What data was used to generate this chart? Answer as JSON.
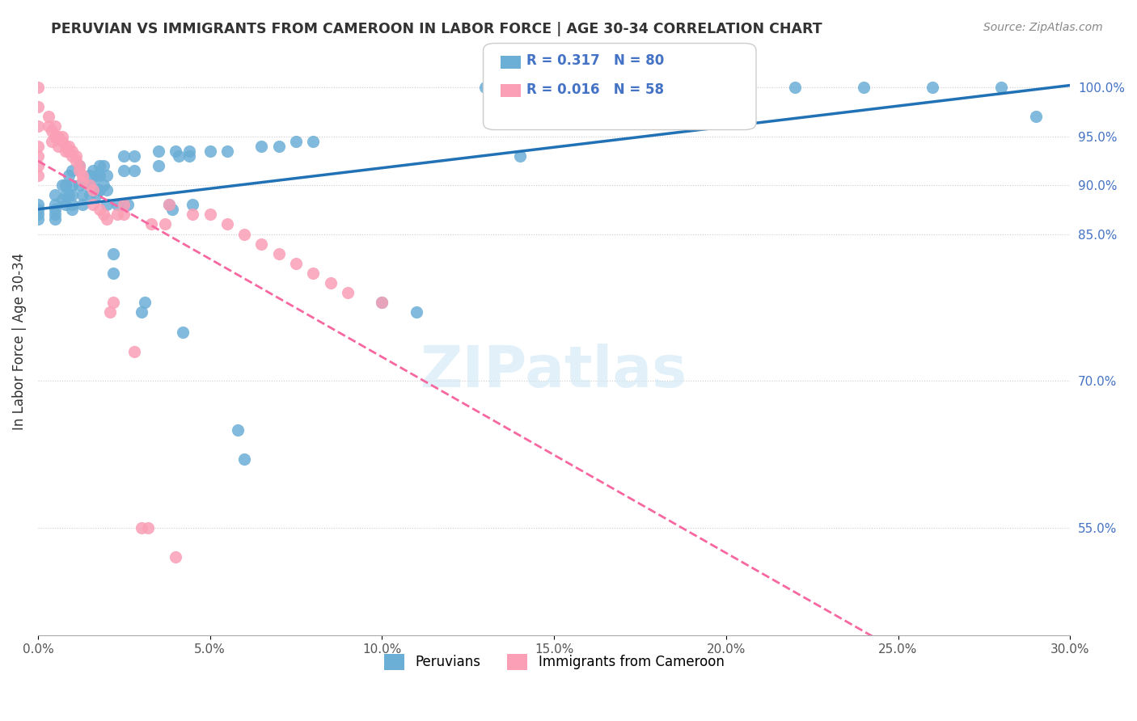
{
  "title": "PERUVIAN VS IMMIGRANTS FROM CAMEROON IN LABOR FORCE | AGE 30-34 CORRELATION CHART",
  "source": "Source: ZipAtlas.com",
  "xlabel_bottom": "",
  "ylabel": "In Labor Force | Age 30-34",
  "x_min": 0.0,
  "x_max": 0.3,
  "y_min": 0.44,
  "y_max": 1.04,
  "x_tick_labels": [
    "0.0%",
    "5.0%",
    "10.0%",
    "15.0%",
    "20.0%",
    "25.0%",
    "30.0%"
  ],
  "x_tick_vals": [
    0.0,
    0.05,
    0.1,
    0.15,
    0.2,
    0.25,
    0.3
  ],
  "y_tick_labels_left": [],
  "y_tick_labels_right": [
    "100.0%",
    "95.0%",
    "90.0%",
    "85.0%",
    "70.0%",
    "55.0%"
  ],
  "y_tick_vals_right": [
    1.0,
    0.95,
    0.9,
    0.85,
    0.7,
    0.55
  ],
  "legend_r1": "R = 0.317",
  "legend_n1": "N = 80",
  "legend_r2": "R = 0.016",
  "legend_n2": "N = 58",
  "blue_color": "#6baed6",
  "pink_color": "#fa9fb5",
  "blue_line_color": "#2171b5",
  "pink_line_color": "#f768a1",
  "watermark": "ZIPatlas",
  "blue_scatter_x": [
    0.0,
    0.0,
    0.0,
    0.0,
    0.005,
    0.005,
    0.005,
    0.005,
    0.005,
    0.007,
    0.007,
    0.008,
    0.008,
    0.008,
    0.009,
    0.009,
    0.01,
    0.01,
    0.01,
    0.01,
    0.01,
    0.012,
    0.012,
    0.013,
    0.013,
    0.015,
    0.015,
    0.015,
    0.016,
    0.016,
    0.017,
    0.017,
    0.018,
    0.018,
    0.018,
    0.019,
    0.019,
    0.02,
    0.02,
    0.02,
    0.022,
    0.022,
    0.023,
    0.025,
    0.025,
    0.026,
    0.028,
    0.028,
    0.03,
    0.031,
    0.035,
    0.035,
    0.038,
    0.039,
    0.04,
    0.041,
    0.042,
    0.044,
    0.044,
    0.045,
    0.05,
    0.055,
    0.058,
    0.06,
    0.065,
    0.07,
    0.075,
    0.08,
    0.1,
    0.11,
    0.13,
    0.14,
    0.16,
    0.18,
    0.2,
    0.22,
    0.24,
    0.26,
    0.28,
    0.29
  ],
  "blue_scatter_y": [
    0.88,
    0.875,
    0.87,
    0.865,
    0.89,
    0.88,
    0.875,
    0.87,
    0.865,
    0.9,
    0.885,
    0.9,
    0.89,
    0.88,
    0.91,
    0.89,
    0.915,
    0.9,
    0.89,
    0.88,
    0.875,
    0.92,
    0.9,
    0.89,
    0.88,
    0.91,
    0.9,
    0.89,
    0.915,
    0.9,
    0.91,
    0.89,
    0.92,
    0.91,
    0.895,
    0.92,
    0.9,
    0.91,
    0.895,
    0.88,
    0.83,
    0.81,
    0.88,
    0.93,
    0.915,
    0.88,
    0.93,
    0.915,
    0.77,
    0.78,
    0.935,
    0.92,
    0.88,
    0.875,
    0.935,
    0.93,
    0.75,
    0.935,
    0.93,
    0.88,
    0.935,
    0.935,
    0.65,
    0.62,
    0.94,
    0.94,
    0.945,
    0.945,
    0.78,
    0.77,
    1.0,
    0.93,
    1.0,
    1.0,
    1.0,
    1.0,
    1.0,
    1.0,
    1.0,
    0.97
  ],
  "pink_scatter_x": [
    0.0,
    0.0,
    0.0,
    0.0,
    0.0,
    0.0,
    0.0,
    0.003,
    0.003,
    0.004,
    0.004,
    0.005,
    0.005,
    0.006,
    0.006,
    0.007,
    0.007,
    0.008,
    0.008,
    0.009,
    0.009,
    0.01,
    0.01,
    0.011,
    0.011,
    0.012,
    0.012,
    0.013,
    0.013,
    0.015,
    0.016,
    0.016,
    0.018,
    0.019,
    0.02,
    0.021,
    0.022,
    0.023,
    0.025,
    0.025,
    0.028,
    0.03,
    0.032,
    0.033,
    0.037,
    0.038,
    0.04,
    0.045,
    0.05,
    0.055,
    0.06,
    0.065,
    0.07,
    0.075,
    0.08,
    0.085,
    0.09,
    0.1
  ],
  "pink_scatter_y": [
    1.0,
    0.98,
    0.96,
    0.94,
    0.93,
    0.92,
    0.91,
    0.97,
    0.96,
    0.955,
    0.945,
    0.96,
    0.95,
    0.95,
    0.94,
    0.95,
    0.945,
    0.94,
    0.935,
    0.94,
    0.935,
    0.935,
    0.93,
    0.93,
    0.925,
    0.92,
    0.915,
    0.91,
    0.905,
    0.9,
    0.895,
    0.88,
    0.875,
    0.87,
    0.865,
    0.77,
    0.78,
    0.87,
    0.88,
    0.87,
    0.73,
    0.55,
    0.55,
    0.86,
    0.86,
    0.88,
    0.52,
    0.87,
    0.87,
    0.86,
    0.85,
    0.84,
    0.83,
    0.82,
    0.81,
    0.8,
    0.79,
    0.78
  ]
}
